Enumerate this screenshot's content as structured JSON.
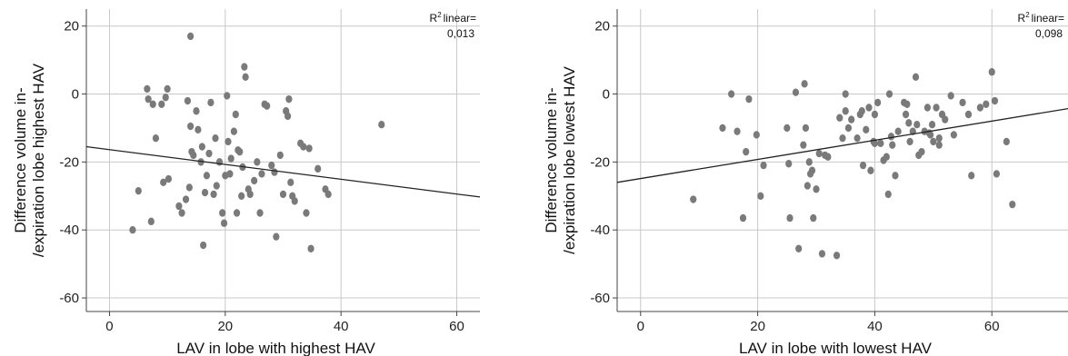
{
  "chart_data": [
    {
      "type": "scatter",
      "xlabel": "LAV in lobe with highest HAV",
      "ylabel_line1": "Difference volume in-",
      "ylabel_line2": "/expiration lobe highest HAV",
      "xlim": [
        -4,
        64
      ],
      "ylim": [
        -64,
        25
      ],
      "xticks": [
        "0",
        "20",
        "40",
        "60"
      ],
      "xtick_values": [
        0,
        20,
        40,
        60
      ],
      "yticks": [
        "20",
        "0",
        "-20",
        "-40",
        "-60"
      ],
      "ytick_values": [
        20,
        0,
        -20,
        -40,
        -60
      ],
      "grid": true,
      "r2_label": "linear=",
      "r2_value": "0,013",
      "fit_line": {
        "x0": -4,
        "y0": -15.5,
        "x1": 64,
        "y1": -30.3
      },
      "points": [
        [
          4,
          -40
        ],
        [
          5,
          -28.5
        ],
        [
          6.5,
          1.5
        ],
        [
          6.7,
          -1.5
        ],
        [
          7.2,
          -37.5
        ],
        [
          7.5,
          -3
        ],
        [
          8,
          -13
        ],
        [
          9,
          -3
        ],
        [
          9.3,
          -26
        ],
        [
          9.7,
          -1
        ],
        [
          10,
          1.5
        ],
        [
          10.2,
          -25
        ],
        [
          12,
          -33
        ],
        [
          12.5,
          -35
        ],
        [
          13.2,
          -31
        ],
        [
          13.5,
          -2
        ],
        [
          13.8,
          -27.5
        ],
        [
          14,
          -9.5
        ],
        [
          14.2,
          -17
        ],
        [
          14.5,
          -18
        ],
        [
          15,
          -5
        ],
        [
          15.3,
          -10.5
        ],
        [
          15.8,
          -20
        ],
        [
          16,
          -15.5
        ],
        [
          16.2,
          -44.5
        ],
        [
          16.5,
          -29
        ],
        [
          16.8,
          -24
        ],
        [
          17.2,
          -17.5
        ],
        [
          17.5,
          -2.5
        ],
        [
          18,
          -29.5
        ],
        [
          18.3,
          -13
        ],
        [
          18.5,
          -27
        ],
        [
          19,
          -20
        ],
        [
          19.5,
          -35
        ],
        [
          19.8,
          -38
        ],
        [
          20,
          -24
        ],
        [
          20.3,
          -0.5
        ],
        [
          20.5,
          -14
        ],
        [
          20.8,
          -23.5
        ],
        [
          21,
          -19
        ],
        [
          21.5,
          -11
        ],
        [
          21.8,
          -6
        ],
        [
          22,
          -35
        ],
        [
          22.2,
          -16.5
        ],
        [
          22.5,
          -17
        ],
        [
          22.8,
          -30
        ],
        [
          23,
          -21.5
        ],
        [
          23.3,
          8
        ],
        [
          23.5,
          5
        ],
        [
          24,
          -28
        ],
        [
          24.3,
          -29.5
        ],
        [
          25,
          -25.5
        ],
        [
          25.5,
          -20
        ],
        [
          26,
          -35
        ],
        [
          26.3,
          -23.5
        ],
        [
          26.8,
          -3
        ],
        [
          27.2,
          -3.5
        ],
        [
          28,
          -21
        ],
        [
          28.5,
          -23
        ],
        [
          28.8,
          -42
        ],
        [
          29.5,
          -18
        ],
        [
          30,
          -29.5
        ],
        [
          30.5,
          -5
        ],
        [
          30.8,
          -6.5
        ],
        [
          31,
          -1.5
        ],
        [
          31.3,
          -26
        ],
        [
          31.6,
          -30
        ],
        [
          32,
          -31.5
        ],
        [
          33,
          -14.5
        ],
        [
          33.5,
          -15.5
        ],
        [
          34,
          -35
        ],
        [
          34.5,
          -16
        ],
        [
          34.8,
          -45.5
        ],
        [
          36,
          -22
        ],
        [
          37.3,
          -28
        ],
        [
          37.8,
          -29.5
        ],
        [
          47,
          -9
        ],
        [
          14,
          17
        ]
      ]
    },
    {
      "type": "scatter",
      "xlabel": "LAV in lobe with lowest HAV",
      "ylabel_line1": "Difference volume in-",
      "ylabel_line2": "/expiration lobe lowest HAV",
      "xlim": [
        -4,
        73
      ],
      "ylim": [
        -64,
        25
      ],
      "xticks": [
        "0",
        "20",
        "40",
        "60"
      ],
      "xtick_values": [
        0,
        20,
        40,
        60
      ],
      "yticks": [
        "20",
        "0",
        "-20",
        "-40",
        "-60"
      ],
      "ytick_values": [
        20,
        0,
        -20,
        -40,
        -60
      ],
      "grid": true,
      "r2_label": "linear=",
      "r2_value": "0,098",
      "fit_line": {
        "x0": -4,
        "y0": -26,
        "x1": 73,
        "y1": -4.3
      },
      "points": [
        [
          9,
          -31
        ],
        [
          14,
          -10
        ],
        [
          15.5,
          0
        ],
        [
          16.5,
          -11
        ],
        [
          17.5,
          -36.5
        ],
        [
          18,
          -17
        ],
        [
          18.5,
          -1.5
        ],
        [
          19.8,
          -12
        ],
        [
          20.5,
          -30
        ],
        [
          21,
          -21
        ],
        [
          25,
          -10
        ],
        [
          25.3,
          -20.5
        ],
        [
          25.5,
          -36.5
        ],
        [
          26.5,
          0.5
        ],
        [
          27,
          -45.5
        ],
        [
          27.8,
          -15
        ],
        [
          28,
          3
        ],
        [
          28.2,
          -10
        ],
        [
          28.5,
          -27
        ],
        [
          28.8,
          -20
        ],
        [
          29,
          -23.5
        ],
        [
          29.3,
          -22.5
        ],
        [
          29.5,
          -36.5
        ],
        [
          30,
          -28
        ],
        [
          30.5,
          -17.5
        ],
        [
          31,
          -47
        ],
        [
          31.5,
          -18
        ],
        [
          32,
          -18.5
        ],
        [
          33.5,
          -47.5
        ],
        [
          34,
          -7
        ],
        [
          34.5,
          -13
        ],
        [
          35,
          0
        ],
        [
          35.5,
          -10
        ],
        [
          36,
          -7.5
        ],
        [
          37,
          -13
        ],
        [
          37.5,
          -6
        ],
        [
          37.8,
          -5
        ],
        [
          38,
          -21
        ],
        [
          38.5,
          -10.5
        ],
        [
          39,
          -4
        ],
        [
          39.3,
          -22.5
        ],
        [
          39.8,
          -14
        ],
        [
          40,
          -6
        ],
        [
          40.5,
          -2.5
        ],
        [
          41,
          -14.5
        ],
        [
          41.5,
          -19.5
        ],
        [
          42,
          -18.5
        ],
        [
          42.3,
          -29.5
        ],
        [
          42.5,
          0
        ],
        [
          42.8,
          -12.5
        ],
        [
          43,
          -15
        ],
        [
          43.5,
          -24
        ],
        [
          45,
          -2.5
        ],
        [
          45.3,
          -6
        ],
        [
          45.5,
          -3
        ],
        [
          45.8,
          -8.5
        ],
        [
          46,
          -14
        ],
        [
          46.5,
          -11
        ],
        [
          47,
          5
        ],
        [
          47.2,
          -9
        ],
        [
          47.5,
          -18
        ],
        [
          48,
          -17
        ],
        [
          48.5,
          -11
        ],
        [
          49,
          -4
        ],
        [
          49.3,
          -11.5
        ],
        [
          49.5,
          -12
        ],
        [
          49.8,
          -9
        ],
        [
          50,
          -14
        ],
        [
          50.5,
          -4
        ],
        [
          51,
          -15
        ],
        [
          51.5,
          -6
        ],
        [
          52,
          -7.5
        ],
        [
          53,
          -0.5
        ],
        [
          53.5,
          -12
        ],
        [
          55,
          -2.5
        ],
        [
          56,
          -6
        ],
        [
          56.5,
          -24
        ],
        [
          58,
          -4
        ],
        [
          59,
          -3
        ],
        [
          60,
          6.5
        ],
        [
          60.5,
          -2
        ],
        [
          60.8,
          -23.5
        ],
        [
          62.5,
          -14
        ],
        [
          63.5,
          -32.5
        ],
        [
          44,
          -11
        ],
        [
          40,
          -14.5
        ],
        [
          51,
          -13
        ],
        [
          35,
          -5
        ]
      ]
    }
  ]
}
